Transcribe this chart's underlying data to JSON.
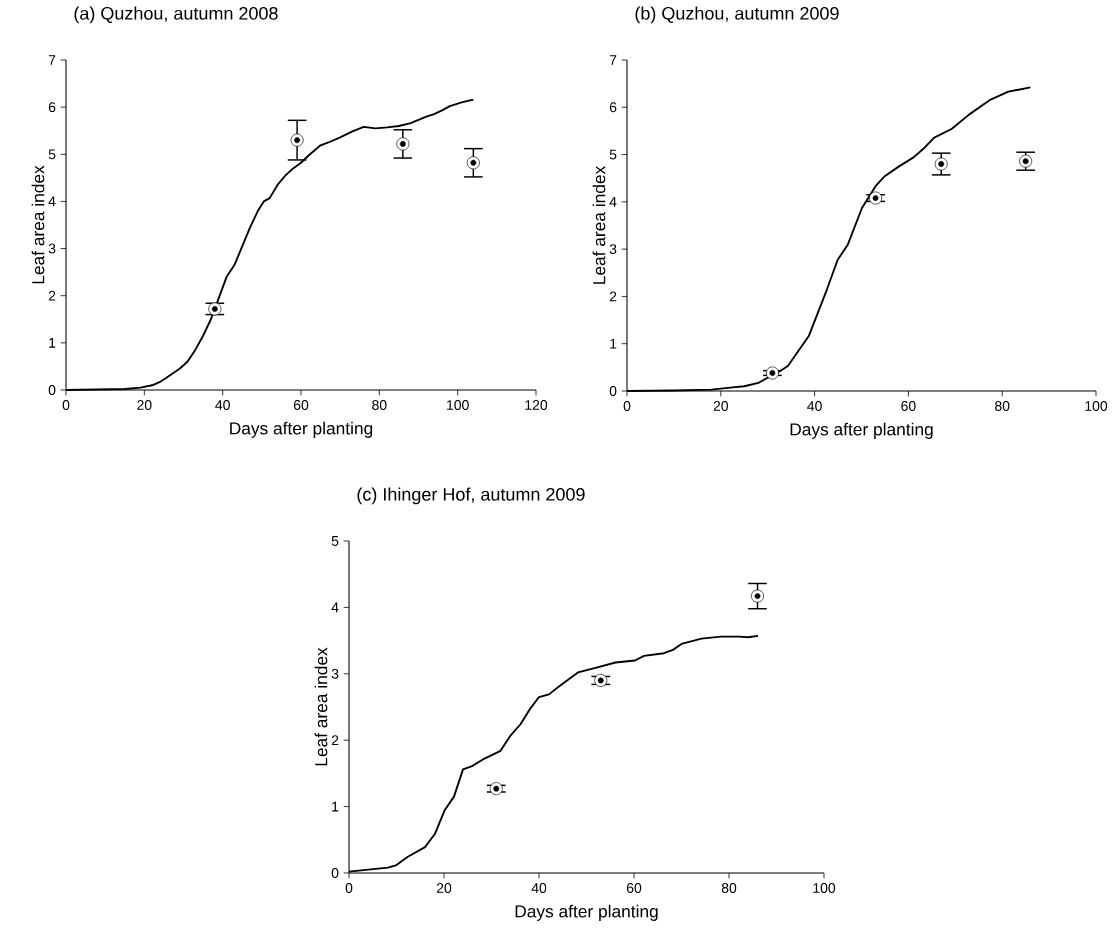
{
  "chart_data": [
    {
      "type": "line",
      "title": "(a) Quzhou, autumn 2008",
      "xlabel": "Days after planting",
      "ylabel": "Leaf area index",
      "xlim": [
        0,
        120
      ],
      "ylim": [
        0,
        7
      ],
      "xticks": [
        0,
        20,
        40,
        60,
        80,
        100,
        120
      ],
      "yticks": [
        0,
        1,
        2,
        3,
        4,
        5,
        6,
        7
      ],
      "series": [
        {
          "type": "line",
          "color": "#000000",
          "x": [
            0,
            8,
            15,
            19,
            22,
            24,
            26,
            29,
            31,
            33,
            35,
            37,
            39,
            41,
            43,
            45,
            47,
            49,
            50.5,
            52,
            54,
            56,
            58,
            60,
            62,
            65,
            67,
            70,
            73,
            76,
            79,
            82,
            85,
            88,
            90,
            92,
            94,
            96,
            98,
            101,
            104
          ],
          "values": [
            0,
            0.01,
            0.02,
            0.05,
            0.1,
            0.17,
            0.28,
            0.45,
            0.6,
            0.85,
            1.15,
            1.5,
            1.95,
            2.4,
            2.65,
            3.05,
            3.45,
            3.8,
            4.0,
            4.07,
            4.35,
            4.55,
            4.7,
            4.82,
            4.98,
            5.19,
            5.25,
            5.36,
            5.48,
            5.58,
            5.55,
            5.57,
            5.6,
            5.66,
            5.73,
            5.8,
            5.85,
            5.93,
            6.02,
            6.1,
            6.16
          ]
        },
        {
          "type": "scatter",
          "color": "#000000",
          "marker": "circle",
          "x": [
            38,
            59,
            86,
            104
          ],
          "values": [
            1.72,
            5.3,
            5.22,
            4.82
          ],
          "errors": [
            0.12,
            0.42,
            0.3,
            0.3
          ]
        }
      ]
    },
    {
      "type": "line",
      "title": "(b) Quzhou, autumn 2009",
      "xlabel": "Days after planting",
      "ylabel": "Leaf area index",
      "xlim": [
        0,
        100
      ],
      "ylim": [
        0,
        7
      ],
      "xticks": [
        0,
        20,
        40,
        60,
        80,
        100
      ],
      "yticks": [
        0,
        1,
        2,
        3,
        4,
        5,
        6,
        7
      ],
      "series": [
        {
          "type": "line",
          "color": "#000000",
          "x": [
            0,
            10,
            18,
            22,
            25,
            28,
            30,
            32,
            34.3,
            38.8,
            42.6,
            44.9,
            47.1,
            50.1,
            53,
            54.8,
            58,
            61.1,
            63.5,
            65.5,
            69.2,
            73,
            77.3,
            81.3,
            86
          ],
          "values": [
            0,
            0.01,
            0.03,
            0.07,
            0.1,
            0.17,
            0.28,
            0.38,
            0.53,
            1.17,
            2.14,
            2.77,
            3.1,
            3.87,
            4.33,
            4.53,
            4.75,
            4.94,
            5.15,
            5.36,
            5.54,
            5.85,
            6.15,
            6.33,
            6.42
          ]
        },
        {
          "type": "scatter",
          "color": "#000000",
          "marker": "circle",
          "x": [
            31,
            53,
            67,
            85
          ],
          "values": [
            0.38,
            4.08,
            4.8,
            4.86
          ],
          "errors": [
            0.05,
            0.07,
            0.23,
            0.19
          ]
        }
      ]
    },
    {
      "type": "line",
      "title": "(c) Ihinger Hof, autumn 2009",
      "xlabel": "Days after planting",
      "ylabel": "Leaf area index",
      "xlim": [
        0,
        100
      ],
      "ylim": [
        0,
        5
      ],
      "xticks": [
        0,
        20,
        40,
        60,
        80,
        100
      ],
      "yticks": [
        0,
        1,
        2,
        3,
        4,
        5
      ],
      "series": [
        {
          "type": "line",
          "color": "#000000",
          "x": [
            0,
            8.2,
            10,
            12.3,
            16,
            18.1,
            20.1,
            22.1,
            24,
            25.9,
            28.2,
            31.9,
            34,
            36.1,
            38,
            40,
            42.1,
            44.4,
            48.2,
            51.9,
            56.1,
            60.2,
            62.1,
            66.3,
            68.2,
            70,
            74.2,
            78.3,
            82.1,
            84,
            86.1
          ],
          "values": [
            0.02,
            0.08,
            0.12,
            0.24,
            0.39,
            0.59,
            0.94,
            1.15,
            1.56,
            1.61,
            1.71,
            1.84,
            2.07,
            2.24,
            2.46,
            2.65,
            2.69,
            2.82,
            3.02,
            3.09,
            3.17,
            3.2,
            3.27,
            3.31,
            3.36,
            3.45,
            3.53,
            3.56,
            3.56,
            3.55,
            3.57
          ]
        },
        {
          "type": "scatter",
          "color": "#000000",
          "marker": "circle",
          "x": [
            31,
            53,
            86
          ],
          "values": [
            1.27,
            2.9,
            4.17
          ],
          "errors": [
            0.05,
            0.06,
            0.19
          ]
        }
      ]
    }
  ]
}
